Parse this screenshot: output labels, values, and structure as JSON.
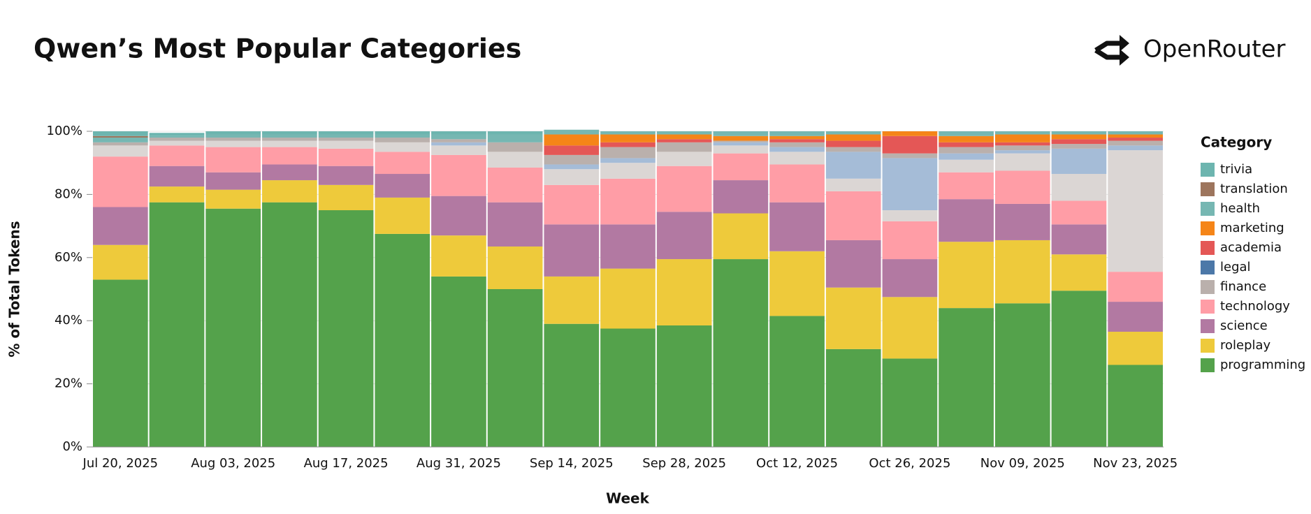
{
  "header": {
    "brand": "OpenRouter"
  },
  "chart_data": {
    "type": "stacked_bar",
    "title": "Qwen’s Most Popular Categories",
    "x_label": "Week",
    "y_label": "% of Total Tokens",
    "legend_title": "Category",
    "categories": [
      "Jul 20, 2025",
      null,
      "Aug 03, 2025",
      null,
      "Aug 17, 2025",
      null,
      "Aug 31, 2025",
      null,
      "Sep 14, 2025",
      null,
      "Sep 28, 2025",
      null,
      "Oct 12, 2025",
      null,
      "Oct 26, 2025",
      null,
      "Nov 09, 2025",
      null,
      "Nov 23, 2025"
    ],
    "ylim": [
      0,
      100
    ],
    "yticks": [
      {
        "value": 0,
        "label": "0%"
      },
      {
        "value": 20,
        "label": "20%"
      },
      {
        "value": 40,
        "label": "40%"
      },
      {
        "value": 60,
        "label": "60%"
      },
      {
        "value": 80,
        "label": "80%"
      },
      {
        "value": 100,
        "label": "100%"
      }
    ],
    "grid": true,
    "series": [
      {
        "name": "programming",
        "color": "#54a24b",
        "values": [
          53,
          77.5,
          75.5,
          77.5,
          75,
          67.5,
          54,
          50,
          39,
          37.5,
          38.5,
          59.5,
          41.5,
          31,
          28,
          44,
          45.5,
          49.5,
          26
        ]
      },
      {
        "name": "roleplay",
        "color": "#eeca3b",
        "values": [
          11,
          5,
          6,
          7,
          8,
          11.5,
          13,
          13.5,
          15,
          19,
          21,
          14.5,
          20.5,
          19.5,
          19.5,
          21,
          20,
          11.5,
          10.5
        ]
      },
      {
        "name": "science",
        "color": "#b279a2",
        "values": [
          12,
          6.5,
          5.5,
          5,
          6,
          7.5,
          12.5,
          14,
          16.5,
          14,
          15,
          10.5,
          15.5,
          15,
          12,
          13.5,
          11.5,
          9.5,
          9.5
        ]
      },
      {
        "name": "technology",
        "color": "#ff9da6",
        "values": [
          16,
          6.5,
          8,
          5.5,
          5.5,
          7,
          13,
          11,
          12.5,
          14.5,
          14.5,
          8.5,
          12,
          15.5,
          12,
          8.5,
          10.5,
          7.5,
          9.5
        ]
      },
      {
        "color": "#dbd6d4",
        "values": [
          3.5,
          1.5,
          2,
          2,
          2.5,
          3,
          3,
          5,
          5,
          5,
          4.5,
          2.5,
          4,
          4,
          3.5,
          4,
          5.5,
          8.5,
          38.5
        ]
      },
      {
        "color": "#a5bcd7",
        "values": [
          0,
          0,
          0,
          0,
          0,
          0,
          1,
          0,
          1.5,
          1.5,
          0,
          1,
          1.5,
          8.5,
          16.5,
          2,
          1,
          8,
          1.5
        ]
      },
      {
        "name": "finance",
        "color": "#bab0ac",
        "values": [
          1,
          1,
          1,
          1,
          1,
          1.5,
          1,
          3,
          3,
          3.5,
          3,
          0.5,
          1.5,
          1.5,
          1.5,
          2,
          1.5,
          1.5,
          1.5
        ]
      },
      {
        "name": "legal",
        "color": "#4c78a8",
        "values": [
          0,
          0,
          0,
          0,
          0,
          0,
          0,
          0,
          0,
          0,
          0,
          0,
          0,
          0,
          0,
          0,
          0,
          0,
          0
        ]
      },
      {
        "name": "academia",
        "color": "#e45756",
        "values": [
          0,
          0,
          0,
          0,
          0,
          0,
          0,
          0,
          3,
          1.5,
          1,
          0,
          1,
          2,
          5.5,
          1.5,
          1,
          1.5,
          1
        ]
      },
      {
        "name": "marketing",
        "color": "#f58518",
        "values": [
          0,
          0,
          0,
          0,
          0,
          0,
          0,
          0,
          3.5,
          2.5,
          1.5,
          1.5,
          1,
          2,
          1.5,
          2,
          2.5,
          1.5,
          1
        ]
      },
      {
        "name": "health",
        "color": "#76b7b2",
        "values": [
          1.5,
          0.5,
          1,
          1,
          1,
          1,
          1.5,
          2.5,
          1.5,
          1,
          1,
          1.5,
          1.5,
          1,
          0,
          1.5,
          1,
          1,
          1
        ]
      },
      {
        "name": "translation",
        "color": "#9d755d",
        "values": [
          0.5,
          0,
          0,
          0,
          0,
          0,
          0,
          0,
          0,
          0,
          0,
          0,
          0,
          0,
          0,
          0,
          0,
          0,
          0
        ]
      },
      {
        "name": "trivia",
        "color": "#6db5af",
        "values": [
          1.5,
          1,
          1,
          1,
          1,
          1,
          1,
          1,
          0,
          0,
          0,
          0,
          0,
          0,
          0,
          0,
          0,
          0,
          0
        ]
      }
    ]
  }
}
